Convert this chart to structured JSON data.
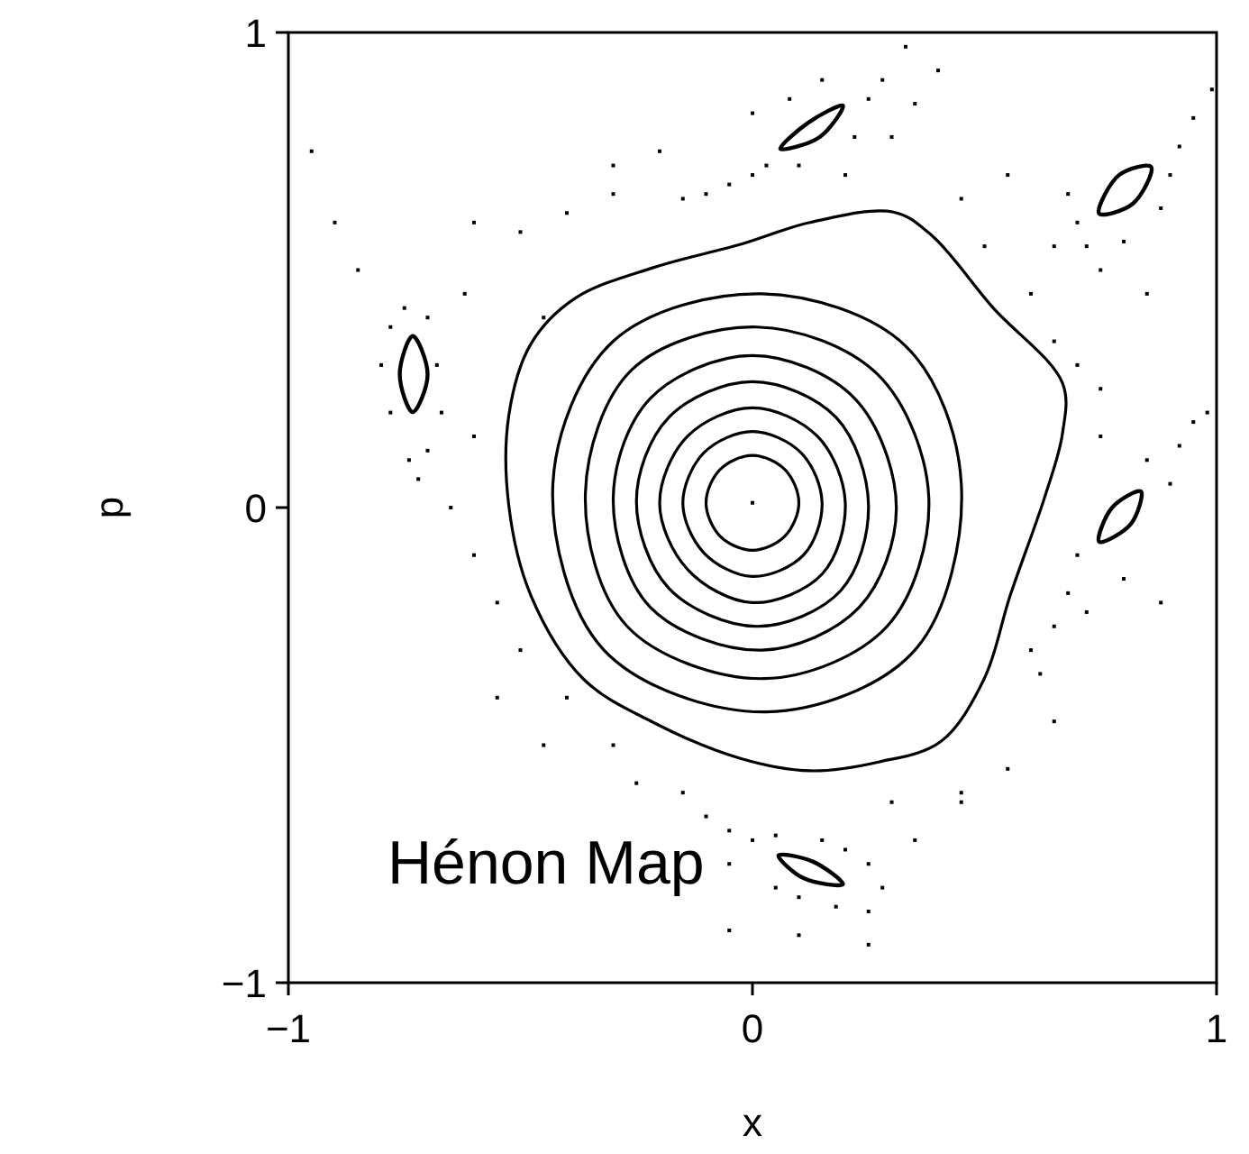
{
  "chart_data": {
    "type": "scatter",
    "title": "Hénon Map",
    "xlabel": "x",
    "ylabel": "p",
    "xlim": [
      -1,
      1
    ],
    "ylim": [
      -1,
      1
    ],
    "xticks": [
      {
        "value": -1,
        "label": "−1"
      },
      0,
      1
    ],
    "yticks": [
      {
        "value": -1,
        "label": "−1"
      },
      0,
      1
    ],
    "grid": false,
    "series": [
      {
        "type": "scatter",
        "marker": "square",
        "color": "#000000",
        "x": [
          0.0,
          0.03,
          -0.05,
          0.1,
          0.22,
          0.25,
          0.28,
          0.15,
          0.08,
          0.0,
          -0.1,
          -0.15,
          0.3,
          0.2,
          0.35,
          0.4,
          0.33,
          0.65,
          0.7,
          0.72,
          0.8,
          0.88,
          0.92,
          0.95,
          0.9,
          0.68,
          0.75,
          0.6,
          0.55,
          0.99,
          0.85,
          0.85,
          0.92,
          0.95,
          0.7,
          0.68,
          0.72,
          0.65,
          0.8,
          0.9,
          0.98,
          0.75,
          0.6,
          0.88,
          0.62,
          -0.1,
          -0.05,
          0.0,
          0.05,
          0.15,
          0.2,
          0.25,
          0.28,
          0.25,
          0.18,
          0.1,
          0.05,
          -0.05,
          0.35,
          0.3,
          -0.15,
          0.1,
          0.25,
          -0.05,
          0.45,
          -0.78,
          -0.75,
          -0.7,
          -0.68,
          -0.67,
          -0.7,
          -0.74,
          -0.78,
          -0.8,
          -0.72,
          -0.65,
          -0.6,
          -0.55,
          -0.6,
          -0.62,
          -0.85,
          -0.9,
          -0.95,
          -0.6,
          -0.5,
          -0.4,
          -0.3,
          -0.45,
          -0.5,
          -0.4,
          -0.3,
          -0.25,
          -0.55,
          -0.45,
          0.45,
          0.5,
          0.65,
          0.7,
          0.75,
          0.65,
          0.55,
          0.45,
          -0.2,
          -0.3
        ],
        "values": [
          0.7,
          0.72,
          0.68,
          0.72,
          0.78,
          0.86,
          0.9,
          0.9,
          0.86,
          0.83,
          0.66,
          0.65,
          0.78,
          0.7,
          0.85,
          0.92,
          0.97,
          0.55,
          0.6,
          0.55,
          0.56,
          0.63,
          0.76,
          0.82,
          0.7,
          0.66,
          0.5,
          0.45,
          0.7,
          0.88,
          0.45,
          0.1,
          0.13,
          0.18,
          -0.1,
          -0.18,
          -0.22,
          -0.25,
          -0.15,
          0.05,
          0.2,
          0.15,
          -0.3,
          -0.2,
          -0.35,
          -0.65,
          -0.68,
          -0.7,
          -0.69,
          -0.7,
          -0.72,
          -0.75,
          -0.8,
          -0.85,
          -0.84,
          -0.82,
          -0.8,
          -0.75,
          -0.7,
          -0.62,
          -0.6,
          -0.9,
          -0.92,
          -0.89,
          -0.6,
          0.38,
          0.42,
          0.4,
          0.3,
          0.2,
          0.12,
          0.1,
          0.2,
          0.3,
          0.06,
          0.0,
          -0.1,
          -0.2,
          0.15,
          0.45,
          0.5,
          0.6,
          0.75,
          0.6,
          0.58,
          0.62,
          0.66,
          0.4,
          -0.3,
          -0.4,
          -0.5,
          -0.58,
          -0.4,
          -0.5,
          0.65,
          0.55,
          0.35,
          0.3,
          0.25,
          -0.45,
          -0.55,
          -0.62,
          0.75,
          0.72
        ]
      },
      {
        "type": "scatter",
        "marker": "square",
        "color": "#000000",
        "x": [
          0.0
        ],
        "values": [
          0.01
        ]
      }
    ]
  }
}
